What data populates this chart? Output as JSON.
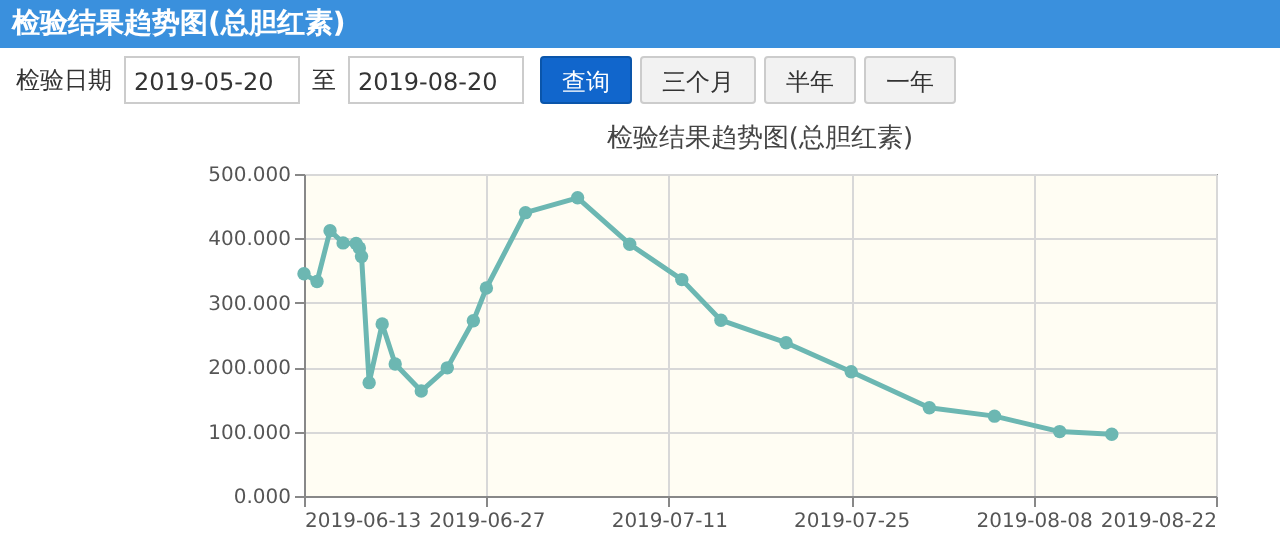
{
  "chart_data": {
    "type": "line",
    "title": "检验结果趋势图(总胆红素)",
    "annotations": [
      "检验结果趋势图(总胆红素)",
      "检验日期",
      "2019-05-20",
      "至",
      "2019-08-20",
      "查询",
      "三个月",
      "半年",
      "一年"
    ],
    "x": [
      "2019-06-13",
      "2019-06-14",
      "2019-06-15",
      "2019-06-16",
      "2019-06-17T00:00",
      "2019-06-17T06:00",
      "2019-06-17T10:00",
      "2019-06-18",
      "2019-06-19",
      "2019-06-20",
      "2019-06-22",
      "2019-06-24",
      "2019-06-26",
      "2019-06-27",
      "2019-06-30",
      "2019-07-04",
      "2019-07-08",
      "2019-07-12",
      "2019-07-15",
      "2019-07-20",
      "2019-07-25",
      "2019-07-31",
      "2019-08-05",
      "2019-08-10",
      "2019-08-14"
    ],
    "series": [
      {
        "color": "#6cb7b2",
        "values": [
          345,
          333,
          412,
          393,
          392,
          385,
          372,
          176,
          267,
          205,
          163,
          199,
          272,
          323,
          440,
          463,
          391,
          336,
          273,
          238,
          193,
          137,
          124,
          100,
          96
        ]
      }
    ],
    "xlim": [
      "2019-06-13",
      "2019-08-22"
    ],
    "xticks": [
      "2019-06-13",
      "2019-06-27",
      "2019-07-11",
      "2019-07-25",
      "2019-08-08",
      "2019-08-22"
    ],
    "ylim": [
      0,
      500
    ],
    "yticks": [
      {
        "value": 0,
        "label": "0.000"
      },
      {
        "value": 100,
        "label": "100.000"
      },
      {
        "value": 200,
        "label": "200.000"
      },
      {
        "value": 300,
        "label": "300.000"
      },
      {
        "value": 400,
        "label": "400.000"
      },
      {
        "value": 500,
        "label": "500.000"
      }
    ],
    "grid": true,
    "marker": "circle",
    "line_style": "solid"
  }
}
